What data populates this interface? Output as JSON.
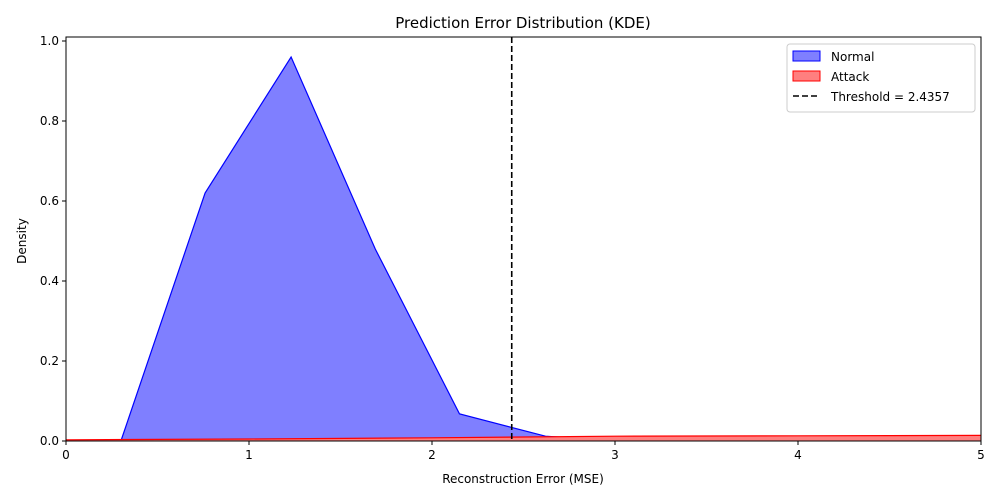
{
  "chart_data": {
    "type": "area",
    "title": "Prediction Error Distribution (KDE)",
    "xlabel": "Reconstruction Error (MSE)",
    "ylabel": "Density",
    "xlim": [
      0,
      5
    ],
    "ylim": [
      0,
      1.01
    ],
    "xticks": [
      0,
      1,
      2,
      3,
      4,
      5
    ],
    "xtick_labels": [
      "0",
      "1",
      "2",
      "3",
      "4",
      "5"
    ],
    "yticks": [
      0.0,
      0.2,
      0.4,
      0.6,
      0.8,
      1.0
    ],
    "ytick_labels": [
      "0.0",
      "0.2",
      "0.4",
      "0.6",
      "0.8",
      "1.0"
    ],
    "grid": false,
    "legend_position": "top-right",
    "series": [
      {
        "name": "Normal",
        "fill_color": "#7f7fff",
        "line_color": "#0000ff",
        "x": [
          0.0,
          0.3,
          0.76,
          1.23,
          1.69,
          2.15,
          2.62,
          3.0,
          5.0
        ],
        "y": [
          0.0,
          0.0,
          0.62,
          0.96,
          0.48,
          0.068,
          0.012,
          0.001,
          0.0
        ]
      },
      {
        "name": "Attack",
        "fill_color": "#ff7f7f",
        "line_color": "#ff0000",
        "x": [
          0.0,
          1.0,
          2.0,
          2.5,
          3.0,
          4.0,
          5.0
        ],
        "y": [
          0.003,
          0.005,
          0.008,
          0.01,
          0.012,
          0.013,
          0.014
        ]
      }
    ],
    "threshold": {
      "value": 2.4357,
      "label": "Threshold = 2.4357",
      "color": "#000000"
    }
  }
}
